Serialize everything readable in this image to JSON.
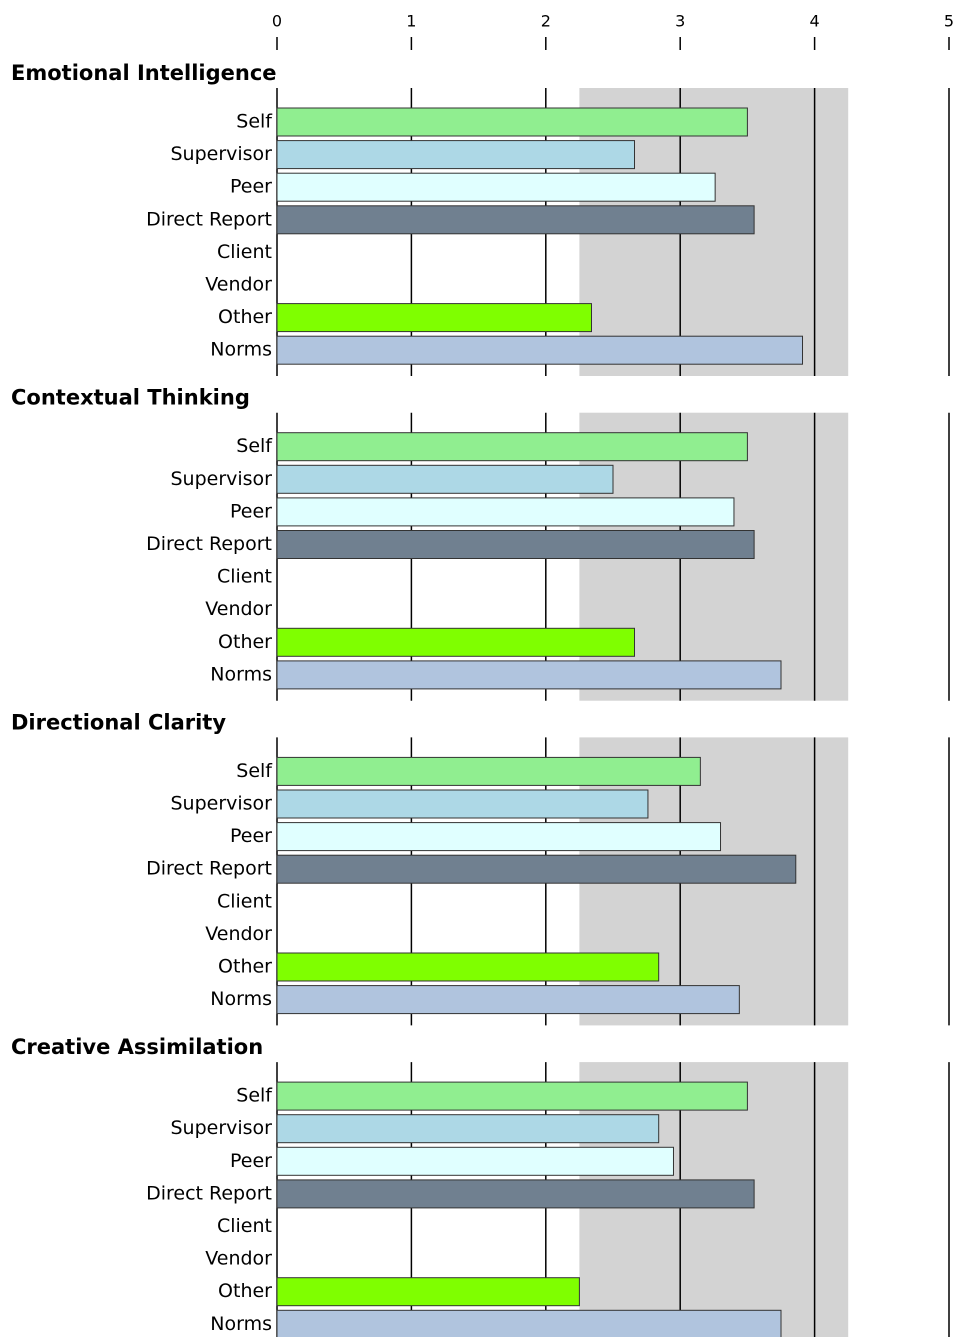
{
  "chart_data": [
    {
      "type": "hbar",
      "title": "Emotional Intelligence",
      "categories": [
        "Self",
        "Supervisor",
        "Peer",
        "Direct Report",
        "Client",
        "Vendor",
        "Other",
        "Norms"
      ],
      "values": [
        3.5,
        2.66,
        3.26,
        3.55,
        null,
        null,
        2.34,
        3.91
      ],
      "colors": [
        "#90ee90",
        "#add8e6",
        "#e0ffff",
        "#708090",
        "#ffffff",
        "#ffffff",
        "#7fff00",
        "#b0c4de"
      ],
      "xlim": [
        0,
        5
      ],
      "xticks": [
        0,
        1,
        2,
        3,
        4,
        5
      ],
      "band": [
        2.25,
        4.25
      ],
      "band_color": "#d3d3d3",
      "grid": true
    },
    {
      "type": "hbar",
      "title": "Contextual Thinking",
      "categories": [
        "Self",
        "Supervisor",
        "Peer",
        "Direct Report",
        "Client",
        "Vendor",
        "Other",
        "Norms"
      ],
      "values": [
        3.5,
        2.5,
        3.4,
        3.55,
        null,
        null,
        2.66,
        3.75
      ],
      "colors": [
        "#90ee90",
        "#add8e6",
        "#e0ffff",
        "#708090",
        "#ffffff",
        "#ffffff",
        "#7fff00",
        "#b0c4de"
      ],
      "xlim": [
        0,
        5
      ],
      "xticks": [
        0,
        1,
        2,
        3,
        4,
        5
      ],
      "band": [
        2.25,
        4.25
      ],
      "band_color": "#d3d3d3",
      "grid": true
    },
    {
      "type": "hbar",
      "title": "Directional Clarity",
      "categories": [
        "Self",
        "Supervisor",
        "Peer",
        "Direct Report",
        "Client",
        "Vendor",
        "Other",
        "Norms"
      ],
      "values": [
        3.15,
        2.76,
        3.3,
        3.86,
        null,
        null,
        2.84,
        3.44
      ],
      "colors": [
        "#90ee90",
        "#add8e6",
        "#e0ffff",
        "#708090",
        "#ffffff",
        "#ffffff",
        "#7fff00",
        "#b0c4de"
      ],
      "xlim": [
        0,
        5
      ],
      "xticks": [
        0,
        1,
        2,
        3,
        4,
        5
      ],
      "band": [
        2.25,
        4.25
      ],
      "band_color": "#d3d3d3",
      "grid": true
    },
    {
      "type": "hbar",
      "title": "Creative Assimilation",
      "categories": [
        "Self",
        "Supervisor",
        "Peer",
        "Direct Report",
        "Client",
        "Vendor",
        "Other",
        "Norms"
      ],
      "values": [
        3.5,
        2.84,
        2.95,
        3.55,
        null,
        null,
        2.25,
        3.75
      ],
      "colors": [
        "#90ee90",
        "#add8e6",
        "#e0ffff",
        "#708090",
        "#ffffff",
        "#ffffff",
        "#7fff00",
        "#b0c4de"
      ],
      "xlim": [
        0,
        5
      ],
      "xticks": [
        0,
        1,
        2,
        3,
        4,
        5
      ],
      "band": [
        2.25,
        4.25
      ],
      "band_color": "#d3d3d3",
      "grid": true
    }
  ]
}
